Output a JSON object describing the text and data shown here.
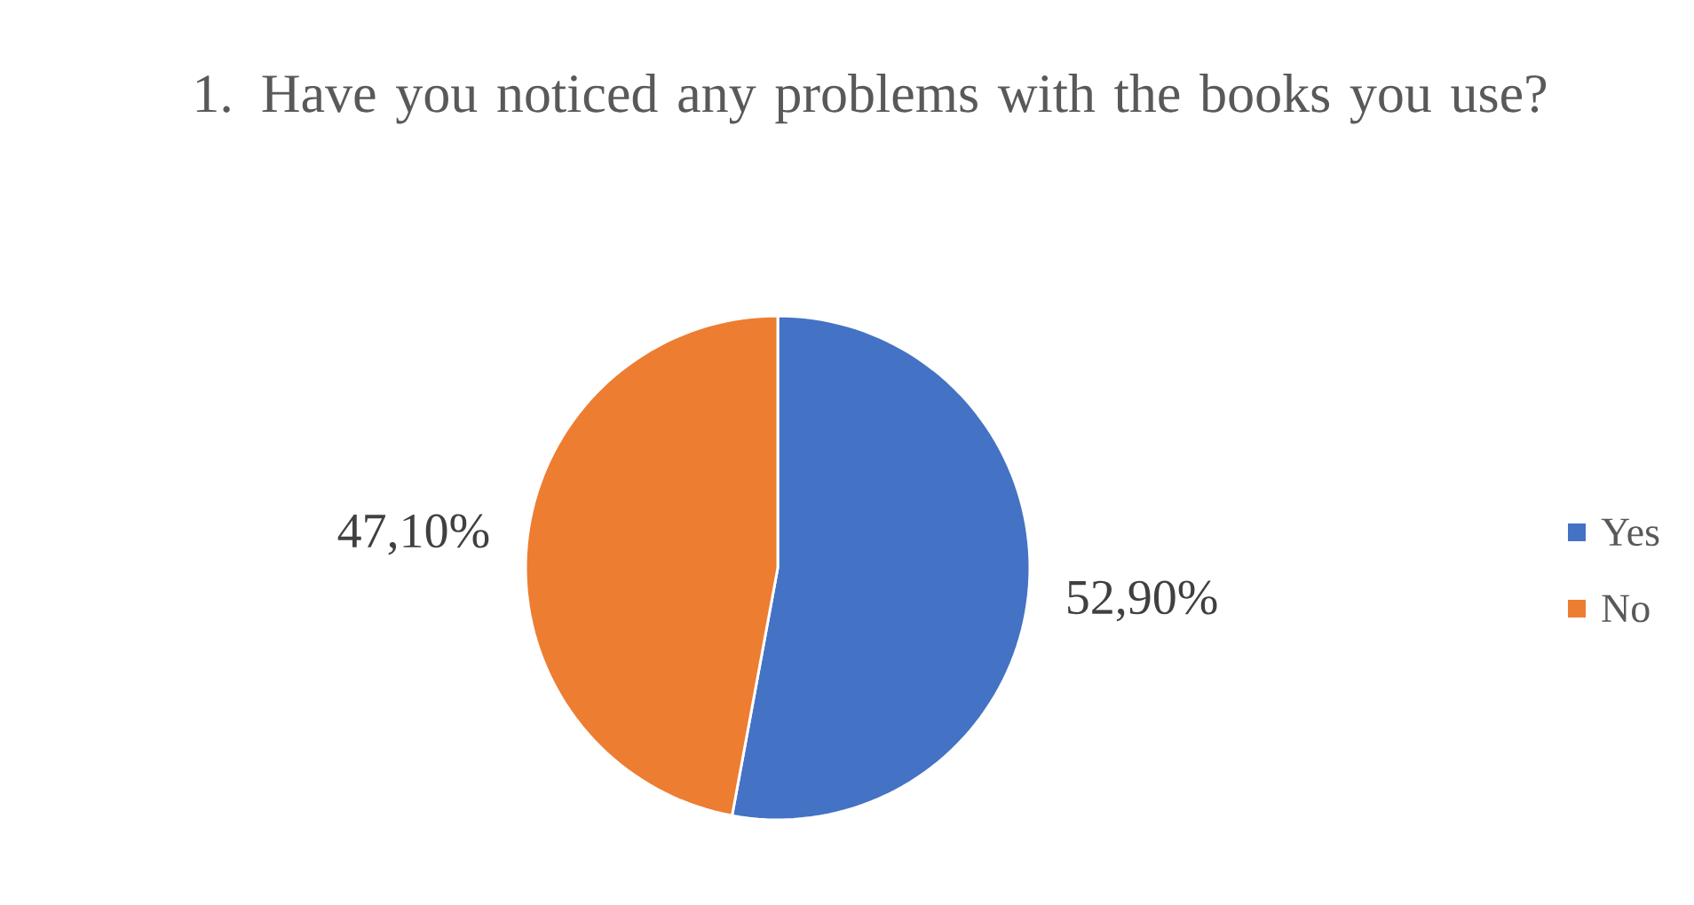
{
  "chart_data": {
    "type": "pie",
    "title": "1. Have you noticed any problems with the books you use?",
    "categories": [
      "Yes",
      "No"
    ],
    "values": [
      52.9,
      47.1
    ],
    "colors": [
      "#4472c4",
      "#ed7d31"
    ],
    "value_labels": [
      "52,90%",
      "47,10%"
    ],
    "legend": "right"
  }
}
